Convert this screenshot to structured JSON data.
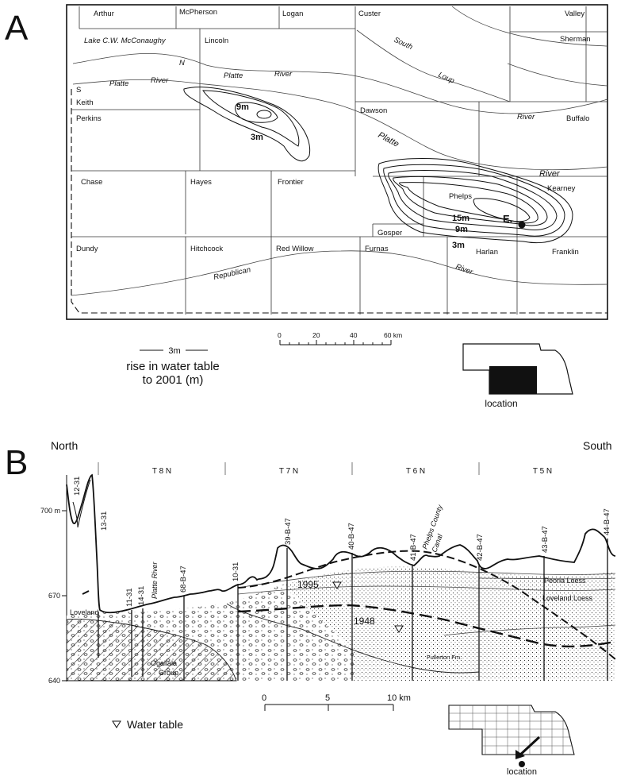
{
  "panel_a": {
    "letter": "A",
    "counties": [
      "Arthur",
      "McPherson",
      "Logan",
      "Custer",
      "Valley",
      "Sherman",
      "Lincoln",
      "Keith",
      "Perkins",
      "Dawson",
      "Buffalo",
      "Chase",
      "Hayes",
      "Frontier",
      "Phelps",
      "Kearney",
      "Gosper",
      "Dundy",
      "Hitchcock",
      "Red Willow",
      "Furnas",
      "Harlan",
      "Franklin"
    ],
    "water_labels": {
      "lake": "Lake C.W. McConaughy",
      "n": "N",
      "s": "S",
      "platte1": "Platte",
      "river1": "River",
      "platte2": "Platte",
      "river2": "River",
      "south": "South",
      "loup": "Loup",
      "river_buffalo": "River",
      "republican": "Republican",
      "river_harlan": "River"
    },
    "contours": [
      "9m",
      "3m",
      "15m",
      "9m",
      "3m"
    ],
    "point_label": "E.",
    "scale": {
      "ticks": [
        "0",
        "20",
        "40",
        "60 km"
      ]
    },
    "legend": {
      "line_label": "3m",
      "text1": "rise in water table",
      "text2": "to 2001 (m)"
    },
    "location_label": "location"
  },
  "panel_b": {
    "letter": "B",
    "north": "North",
    "south": "South",
    "townships": [
      "T 8 N",
      "T 7 N",
      "T 6 N",
      "T 5 N"
    ],
    "y_ticks": [
      "700 m",
      "670",
      "640"
    ],
    "wells": [
      "12-31",
      "13-31",
      "11-31",
      "14-31",
      "68-B-47",
      "10-31",
      "39-B-47",
      "40-B-47",
      "41-B-47",
      "42-B-47",
      "43-B-47",
      "44-B-47"
    ],
    "features": {
      "platte_river": "Platte River",
      "canal1": "Phelps County",
      "canal2": "Canal",
      "year1995": "1995",
      "year1948": "1948",
      "peoria": "Peoria Loess",
      "loveland_loess": "Loveland Loess",
      "loveland": "Loveland",
      "ogallala1": "Ogallala",
      "ogallala2": "Group",
      "fullerton": "Fullerton Fm."
    },
    "scale": {
      "ticks": [
        "0",
        "5",
        "10 km"
      ]
    },
    "legend": "Water table",
    "location_label": "location"
  }
}
